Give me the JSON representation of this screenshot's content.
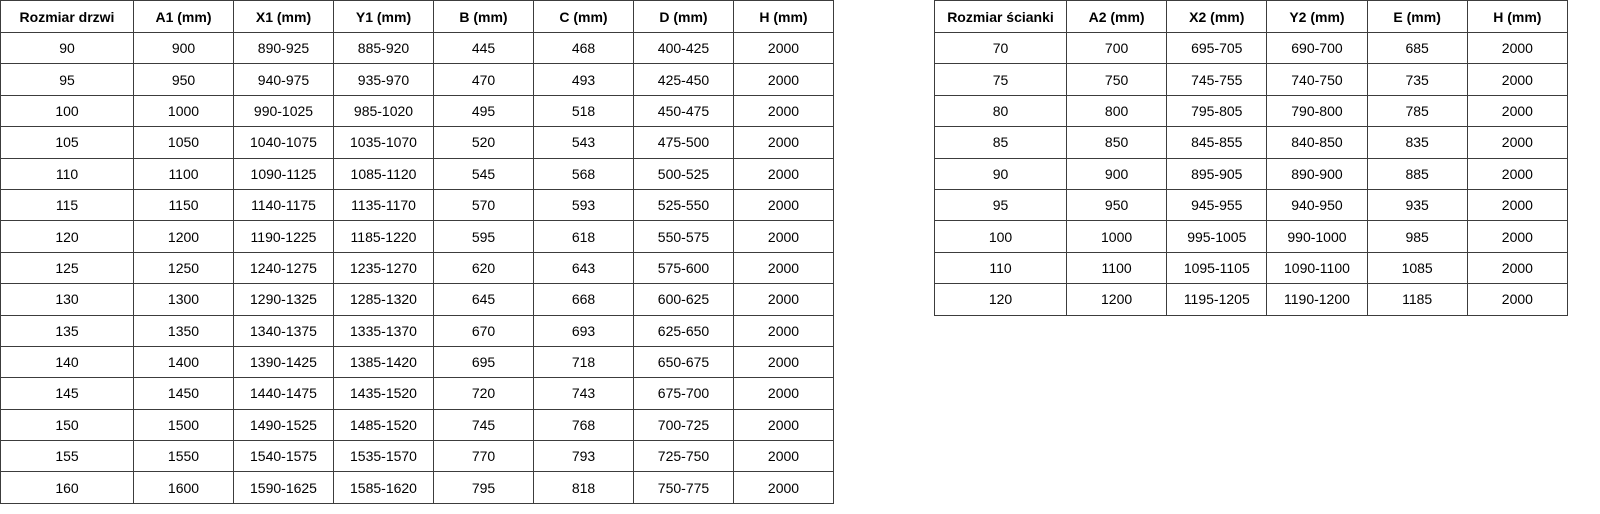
{
  "doors_table": {
    "headers": [
      "Rozmiar drzwi",
      "A1 (mm)",
      "X1 (mm)",
      "Y1 (mm)",
      "B (mm)",
      "C (mm)",
      "D (mm)",
      "H (mm)"
    ],
    "rows": [
      [
        "90",
        "900",
        "890-925",
        "885-920",
        "445",
        "468",
        "400-425",
        "2000"
      ],
      [
        "95",
        "950",
        "940-975",
        "935-970",
        "470",
        "493",
        "425-450",
        "2000"
      ],
      [
        "100",
        "1000",
        "990-1025",
        "985-1020",
        "495",
        "518",
        "450-475",
        "2000"
      ],
      [
        "105",
        "1050",
        "1040-1075",
        "1035-1070",
        "520",
        "543",
        "475-500",
        "2000"
      ],
      [
        "110",
        "1100",
        "1090-1125",
        "1085-1120",
        "545",
        "568",
        "500-525",
        "2000"
      ],
      [
        "115",
        "1150",
        "1140-1175",
        "1135-1170",
        "570",
        "593",
        "525-550",
        "2000"
      ],
      [
        "120",
        "1200",
        "1190-1225",
        "1185-1220",
        "595",
        "618",
        "550-575",
        "2000"
      ],
      [
        "125",
        "1250",
        "1240-1275",
        "1235-1270",
        "620",
        "643",
        "575-600",
        "2000"
      ],
      [
        "130",
        "1300",
        "1290-1325",
        "1285-1320",
        "645",
        "668",
        "600-625",
        "2000"
      ],
      [
        "135",
        "1350",
        "1340-1375",
        "1335-1370",
        "670",
        "693",
        "625-650",
        "2000"
      ],
      [
        "140",
        "1400",
        "1390-1425",
        "1385-1420",
        "695",
        "718",
        "650-675",
        "2000"
      ],
      [
        "145",
        "1450",
        "1440-1475",
        "1435-1520",
        "720",
        "743",
        "675-700",
        "2000"
      ],
      [
        "150",
        "1500",
        "1490-1525",
        "1485-1520",
        "745",
        "768",
        "700-725",
        "2000"
      ],
      [
        "155",
        "1550",
        "1540-1575",
        "1535-1570",
        "770",
        "793",
        "725-750",
        "2000"
      ],
      [
        "160",
        "1600",
        "1590-1625",
        "1585-1620",
        "795",
        "818",
        "750-775",
        "2000"
      ]
    ]
  },
  "wall_table": {
    "headers": [
      "Rozmiar ścianki",
      "A2 (mm)",
      "X2 (mm)",
      "Y2 (mm)",
      "E (mm)",
      "H (mm)"
    ],
    "rows": [
      [
        "70",
        "700",
        "695-705",
        "690-700",
        "685",
        "2000"
      ],
      [
        "75",
        "750",
        "745-755",
        "740-750",
        "735",
        "2000"
      ],
      [
        "80",
        "800",
        "795-805",
        "790-800",
        "785",
        "2000"
      ],
      [
        "85",
        "850",
        "845-855",
        "840-850",
        "835",
        "2000"
      ],
      [
        "90",
        "900",
        "895-905",
        "890-900",
        "885",
        "2000"
      ],
      [
        "95",
        "950",
        "945-955",
        "940-950",
        "935",
        "2000"
      ],
      [
        "100",
        "1000",
        "995-1005",
        "990-1000",
        "985",
        "2000"
      ],
      [
        "110",
        "1100",
        "1095-1105",
        "1090-1100",
        "1085",
        "2000"
      ],
      [
        "120",
        "1200",
        "1195-1205",
        "1190-1200",
        "1185",
        "2000"
      ]
    ]
  }
}
